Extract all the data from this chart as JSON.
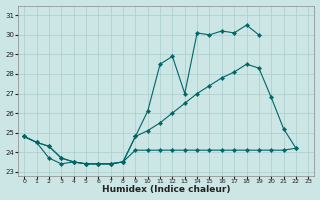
{
  "xlabel": "Humidex (Indice chaleur)",
  "bg_color": "#cce5e5",
  "grid_color": "#aacccc",
  "line_color": "#006666",
  "ylim": [
    22.8,
    31.5
  ],
  "xlim": [
    -0.5,
    23.5
  ],
  "yticks": [
    23,
    24,
    25,
    26,
    27,
    28,
    29,
    30,
    31
  ],
  "xticks": [
    0,
    1,
    2,
    3,
    4,
    5,
    6,
    7,
    8,
    9,
    10,
    11,
    12,
    13,
    14,
    15,
    16,
    17,
    18,
    19,
    20,
    21,
    22,
    23
  ],
  "series_low": [
    24.8,
    24.5,
    23.7,
    23.4,
    23.5,
    23.4,
    23.4,
    23.4,
    23.5,
    24.1,
    24.1,
    24.1,
    24.1,
    24.1,
    24.1,
    24.1,
    24.1,
    24.1,
    24.1,
    24.1,
    24.1,
    24.1,
    24.2,
    null
  ],
  "series_mid": [
    24.8,
    24.5,
    24.3,
    23.7,
    23.5,
    23.4,
    23.4,
    23.4,
    23.5,
    24.8,
    25.1,
    25.5,
    26.0,
    26.5,
    27.0,
    27.4,
    27.8,
    28.1,
    28.5,
    28.3,
    26.8,
    25.2,
    24.2,
    null
  ],
  "series_high": [
    24.8,
    24.5,
    24.3,
    23.7,
    23.5,
    23.4,
    23.4,
    23.4,
    23.5,
    24.8,
    26.1,
    28.5,
    28.9,
    27.0,
    30.1,
    30.0,
    30.2,
    30.1,
    30.5,
    30.0,
    null,
    null,
    null,
    null
  ]
}
